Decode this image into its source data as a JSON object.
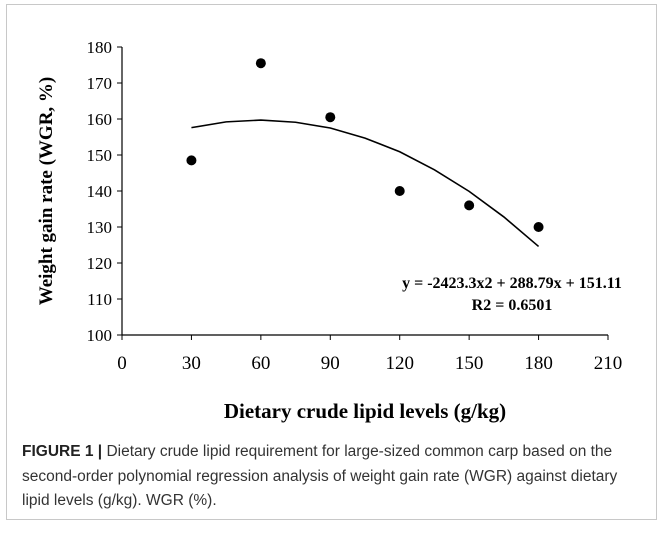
{
  "chart_data": {
    "type": "scatter",
    "xlabel": "Dietary crude lipid levels (g/kg)",
    "ylabel": "Weight gain rate (WGR, %)",
    "series": [
      {
        "type": "scatter",
        "color": "#000000",
        "x": [
          30,
          60,
          90,
          120,
          150,
          180
        ],
        "values": [
          148.5,
          175.5,
          160.5,
          140,
          136,
          130
        ]
      },
      {
        "type": "line",
        "color": "#000000",
        "x": [
          30,
          45,
          60,
          75,
          90,
          105,
          120,
          135,
          150,
          165,
          180
        ],
        "values": [
          157.6,
          159.2,
          159.7,
          159.1,
          157.5,
          154.7,
          150.9,
          145.9,
          139.9,
          132.8,
          124.6
        ]
      }
    ],
    "annotations": [
      "y = -2423.3x2 + 288.79x + 151.11",
      "R2 = 0.6501"
    ],
    "xlim": [
      0,
      210
    ],
    "xticks": [
      0,
      30,
      60,
      90,
      120,
      150,
      180,
      210
    ],
    "ylim": [
      100,
      180
    ],
    "yticks": [
      100,
      110,
      120,
      130,
      140,
      150,
      160,
      170,
      180
    ]
  },
  "caption": {
    "label": "FIGURE 1 |",
    "text": "Dietary crude lipid requirement for large-sized common carp based on the second-order polynomial regression analysis of weight gain rate (WGR) against dietary lipid levels (g/kg). WGR (%)."
  }
}
